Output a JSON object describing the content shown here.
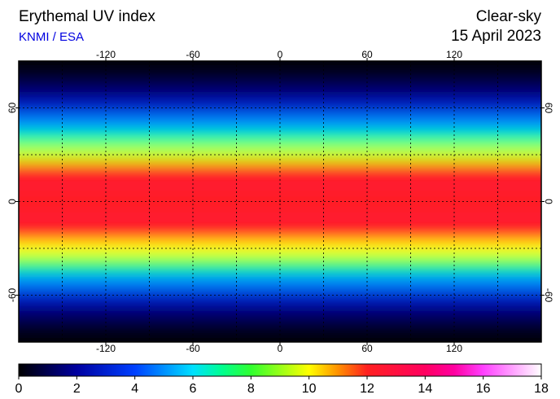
{
  "map": {
    "title": "Erythemal UV index",
    "source": "KNMI / ESA",
    "condition": "Clear-sky",
    "date": "15 April 2023",
    "xlim": [
      -180,
      180
    ],
    "ylim": [
      -90,
      90
    ],
    "lon_ticks": [
      -120,
      -60,
      0,
      60,
      120
    ],
    "lat_ticks": [
      60,
      0,
      -60
    ],
    "grid_lon": [
      -150,
      -120,
      -90,
      -60,
      -30,
      0,
      30,
      60,
      90,
      120,
      150
    ],
    "grid_lat": [
      -60,
      -30,
      0,
      30,
      60
    ],
    "zonal_uv": {
      "lat": [
        90,
        80,
        70,
        60,
        50,
        40,
        30,
        20,
        10,
        0,
        -10,
        -20,
        -30,
        -40,
        -50,
        -60,
        -70,
        -80,
        -90
      ],
      "values": [
        0,
        0.5,
        1.5,
        3,
        5,
        7,
        9.5,
        12,
        12.5,
        12,
        12.5,
        12,
        10,
        7.5,
        5,
        3,
        1.5,
        0.5,
        0
      ]
    },
    "colorbar": {
      "lim": [
        0,
        18
      ],
      "ticks": [
        0,
        2,
        4,
        6,
        8,
        10,
        12,
        14,
        16,
        18
      ],
      "stops": [
        {
          "value": 0,
          "color": "#000000"
        },
        {
          "value": 2,
          "color": "#0000a0"
        },
        {
          "value": 4,
          "color": "#0040ff"
        },
        {
          "value": 6,
          "color": "#00e0ff"
        },
        {
          "value": 7,
          "color": "#00ff90"
        },
        {
          "value": 8,
          "color": "#30ff30"
        },
        {
          "value": 10,
          "color": "#ffff00"
        },
        {
          "value": 11,
          "color": "#ff9000"
        },
        {
          "value": 12,
          "color": "#ff2020"
        },
        {
          "value": 14,
          "color": "#ff0060"
        },
        {
          "value": 15,
          "color": "#ff00a0"
        },
        {
          "value": 16,
          "color": "#ff40ff"
        },
        {
          "value": 18,
          "color": "#ffffff"
        }
      ]
    }
  }
}
